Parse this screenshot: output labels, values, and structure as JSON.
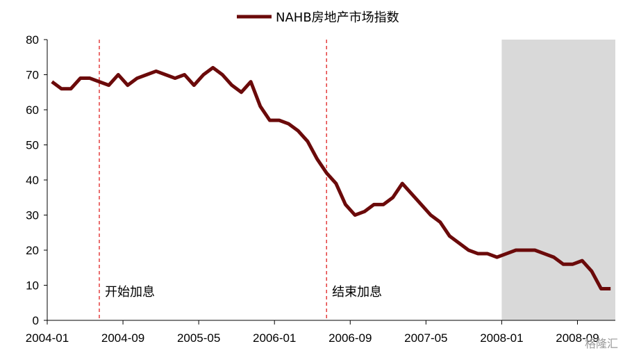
{
  "chart_data": {
    "type": "line",
    "title": "",
    "xlabel": "",
    "ylabel": "",
    "ylim": [
      0,
      80
    ],
    "yticks": [
      "0",
      "10",
      "20",
      "30",
      "40",
      "50",
      "60",
      "70",
      "80"
    ],
    "xticks": [
      "2004-01",
      "2004-09",
      "2005-05",
      "2006-01",
      "2006-09",
      "2007-05",
      "2008-01",
      "2008-09"
    ],
    "grid": false,
    "legend_position": "top-center",
    "series": [
      {
        "name": "NAHB房地产市场指数",
        "color": "#6B0A0A",
        "x": [
          "2004-01",
          "2004-02",
          "2004-03",
          "2004-04",
          "2004-05",
          "2004-06",
          "2004-07",
          "2004-08",
          "2004-09",
          "2004-10",
          "2004-11",
          "2004-12",
          "2005-01",
          "2005-02",
          "2005-03",
          "2005-04",
          "2005-05",
          "2005-06",
          "2005-07",
          "2005-08",
          "2005-09",
          "2005-10",
          "2005-11",
          "2005-12",
          "2006-01",
          "2006-02",
          "2006-03",
          "2006-04",
          "2006-05",
          "2006-06",
          "2006-07",
          "2006-08",
          "2006-09",
          "2006-10",
          "2006-11",
          "2006-12",
          "2007-01",
          "2007-02",
          "2007-03",
          "2007-04",
          "2007-05",
          "2007-06",
          "2007-07",
          "2007-08",
          "2007-09",
          "2007-10",
          "2007-11",
          "2007-12",
          "2008-01",
          "2008-02",
          "2008-03",
          "2008-04",
          "2008-05",
          "2008-06",
          "2008-07",
          "2008-08",
          "2008-09",
          "2008-10",
          "2008-11",
          "2008-12"
        ],
        "values": [
          68,
          66,
          66,
          69,
          69,
          68,
          67,
          70,
          67,
          69,
          70,
          71,
          70,
          69,
          70,
          67,
          70,
          72,
          70,
          67,
          65,
          68,
          61,
          57,
          57,
          56,
          54,
          51,
          46,
          42,
          39,
          33,
          30,
          31,
          33,
          33,
          35,
          39,
          36,
          33,
          30,
          28,
          24,
          22,
          20,
          19,
          19,
          18,
          19,
          20,
          20,
          20,
          19,
          18,
          16,
          16,
          17,
          14,
          9,
          9
        ]
      }
    ],
    "annotations": [
      {
        "text": "开始加息",
        "x": "2004-06",
        "color": "#E02020"
      },
      {
        "text": "结束加息",
        "x": "2006-06",
        "color": "#E02020"
      }
    ],
    "shaded_region": {
      "from": "2008-01",
      "to": "2008-12",
      "color": "#D9D9D9"
    }
  },
  "watermark": "格隆汇"
}
